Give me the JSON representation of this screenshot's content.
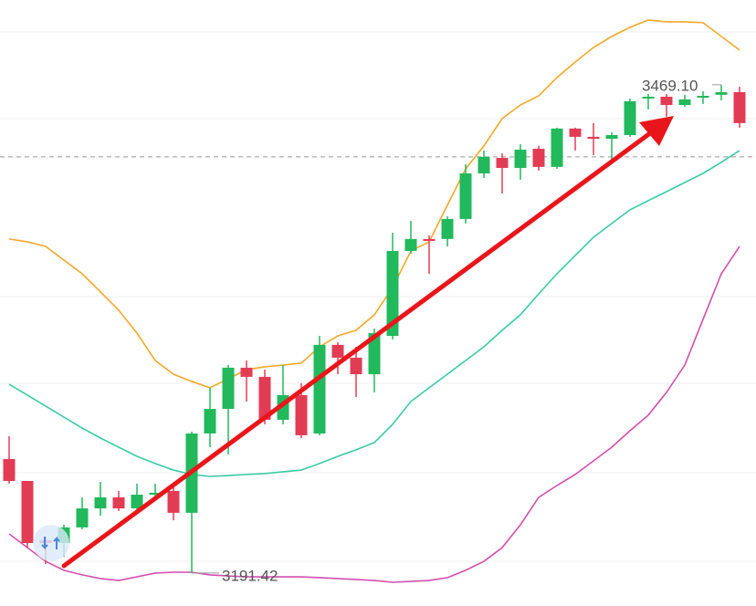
{
  "chart_data": {
    "type": "candlestick",
    "open": [
      3256.3,
      3243.8,
      3210.1,
      3208.5,
      3217.4,
      3228.2,
      3234.5,
      3228.2,
      3236.0,
      3238.1,
      3225.7,
      3270.8,
      3284.8,
      3308.2,
      3303.0,
      3278.6,
      3292.6,
      3270.8,
      3321.2,
      3313.9,
      3304.5,
      3326.3,
      3374.6,
      3381.4,
      3381.4,
      3392.8,
      3418.7,
      3427.5,
      3421.8,
      3432.7,
      3422.4,
      3444.2,
      3439.5,
      3438.4,
      3440.5,
      3461.3,
      3462.3,
      3457.6,
      3461.8,
      3463.4,
      3464.9
    ],
    "high": [
      3269.3,
      3243.8,
      3212.2,
      3218.9,
      3234.5,
      3243.3,
      3238.1,
      3242.3,
      3242.3,
      3242.3,
      3271.8,
      3296.8,
      3309.7,
      3312.3,
      3307.1,
      3309.7,
      3299.4,
      3326.3,
      3322.7,
      3320.1,
      3330.5,
      3385.0,
      3391.7,
      3383.4,
      3394.3,
      3423.9,
      3431.7,
      3430.1,
      3435.3,
      3434.3,
      3444.7,
      3444.7,
      3447.3,
      3442.1,
      3461.3,
      3463.9,
      3463.9,
      3463.4,
      3465.4,
      3469.1,
      3468.0
    ],
    "low": [
      3242.3,
      3205.9,
      3196.6,
      3200.7,
      3216.3,
      3224.1,
      3226.7,
      3225.7,
      3232.9,
      3221.5,
      3191.42,
      3263.0,
      3258.9,
      3289.0,
      3276.0,
      3276.0,
      3268.2,
      3269.8,
      3304.5,
      3291.6,
      3294.2,
      3324.3,
      3373.1,
      3361.6,
      3377.2,
      3390.2,
      3416.1,
      3407.3,
      3415.1,
      3420.3,
      3421.3,
      3431.7,
      3429.1,
      3426.5,
      3439.5,
      3455.1,
      3450.9,
      3456.6,
      3458.2,
      3460.2,
      3444.7
    ],
    "close": [
      3243.8,
      3208.5,
      3208.5,
      3217.4,
      3228.2,
      3234.5,
      3228.2,
      3236.0,
      3237.1,
      3225.7,
      3270.8,
      3284.8,
      3308.2,
      3303.0,
      3278.6,
      3292.6,
      3269.8,
      3321.2,
      3313.9,
      3304.5,
      3327.9,
      3374.6,
      3381.4,
      3380.3,
      3392.8,
      3418.7,
      3428.1,
      3421.8,
      3432.2,
      3422.4,
      3444.2,
      3439.5,
      3438.4,
      3440.5,
      3459.7,
      3462.3,
      3457.6,
      3460.8,
      3462.8,
      3464.9,
      3447.3
    ],
    "up_color": "#22b85c",
    "down_color": "#e23c55",
    "bands": [
      {
        "color": "#f0a92c",
        "values": [
          3381.4,
          3379.8,
          3377.2,
          3369.4,
          3361.6,
          3351.3,
          3340.9,
          3327.9,
          3312.3,
          3304.5,
          3300.4,
          3296.8,
          3301.9,
          3307.1,
          3308.7,
          3309.7,
          3310.8,
          3320.1,
          3326.3,
          3329.5,
          3338.3,
          3353.8,
          3374.6,
          3379.8,
          3400.6,
          3421.3,
          3434.3,
          3449.9,
          3457.6,
          3462.8,
          3473.2,
          3482.0,
          3490.3,
          3496.6,
          3501.8,
          3505.9,
          3504.9,
          3504.9,
          3504.4,
          3496.6,
          3488.8
        ]
      },
      {
        "color": "#3ccaa6",
        "values": [
          3298.8,
          3292.6,
          3286.4,
          3280.1,
          3273.9,
          3268.2,
          3263.0,
          3257.8,
          3253.7,
          3250.0,
          3247.5,
          3246.4,
          3246.9,
          3247.5,
          3248.0,
          3249.0,
          3250.0,
          3253.7,
          3257.8,
          3261.5,
          3265.6,
          3276.0,
          3289.0,
          3296.8,
          3304.5,
          3312.3,
          3320.1,
          3329.5,
          3338.3,
          3350.2,
          3361.6,
          3372.0,
          3382.4,
          3390.2,
          3398.0,
          3403.2,
          3408.3,
          3413.5,
          3418.7,
          3425.0,
          3431.7
        ]
      },
      {
        "color": "#d24fae",
        "values": [
          3213.7,
          3205.9,
          3198.1,
          3193.0,
          3190.4,
          3188.3,
          3187.2,
          3189.3,
          3191.4,
          3191.9,
          3191.9,
          3190.4,
          3189.8,
          3189.3,
          3189.3,
          3189.3,
          3189.3,
          3188.8,
          3188.3,
          3187.8,
          3187.2,
          3186.2,
          3186.7,
          3187.2,
          3188.8,
          3193.0,
          3198.1,
          3205.9,
          3218.9,
          3234.5,
          3241.2,
          3247.5,
          3255.2,
          3263.0,
          3272.4,
          3281.2,
          3294.2,
          3309.7,
          3335.7,
          3361.6,
          3377.2
        ]
      }
    ],
    "reference_line": 3428.1,
    "ylim": [
      3172.7,
      3517.3
    ],
    "annotations": [
      "3469.10",
      "3191.42"
    ]
  }
}
